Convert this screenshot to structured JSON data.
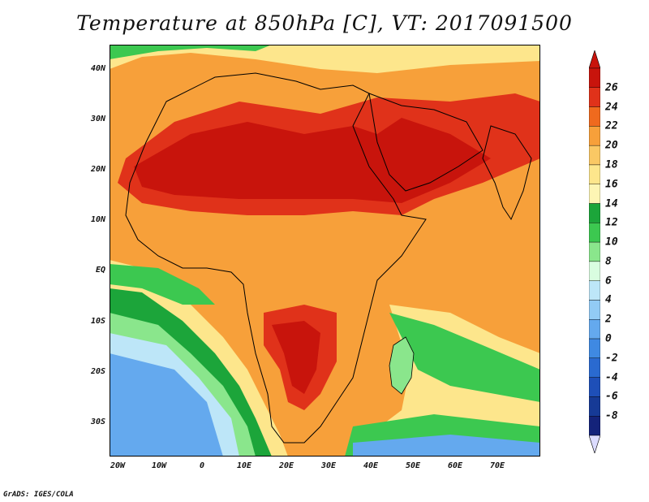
{
  "title": "Temperature at 850hPa [C], VT: 2017091500",
  "credit": "GrADS: IGES/COLA",
  "map": {
    "lat_labels": [
      "40N",
      "30N",
      "20N",
      "10N",
      "EQ",
      "10S",
      "20S",
      "30S"
    ],
    "lon_labels": [
      "20W",
      "10W",
      "0",
      "10E",
      "20E",
      "30E",
      "40E",
      "50E",
      "60E",
      "70E"
    ]
  },
  "colorbar": {
    "labels": [
      "26",
      "24",
      "22",
      "20",
      "18",
      "16",
      "14",
      "12",
      "10",
      "8",
      "6",
      "4",
      "2",
      "0",
      "-2",
      "-4",
      "-6",
      "-8"
    ],
    "colors": [
      "#c8140c",
      "#e0321a",
      "#ef6a1e",
      "#f7a03a",
      "#fac864",
      "#fde68c",
      "#fdf5b4",
      "#1ca53a",
      "#3cc850",
      "#8ae68c",
      "#d9fde0",
      "#bde6f8",
      "#92cbf5",
      "#64a9ee",
      "#3f89e2",
      "#2a6ad0",
      "#1e4fb8",
      "#163a96",
      "#14237a"
    ],
    "top_arrow_color": "#c8140c",
    "bottom_arrow_color": "#dcdcff"
  }
}
